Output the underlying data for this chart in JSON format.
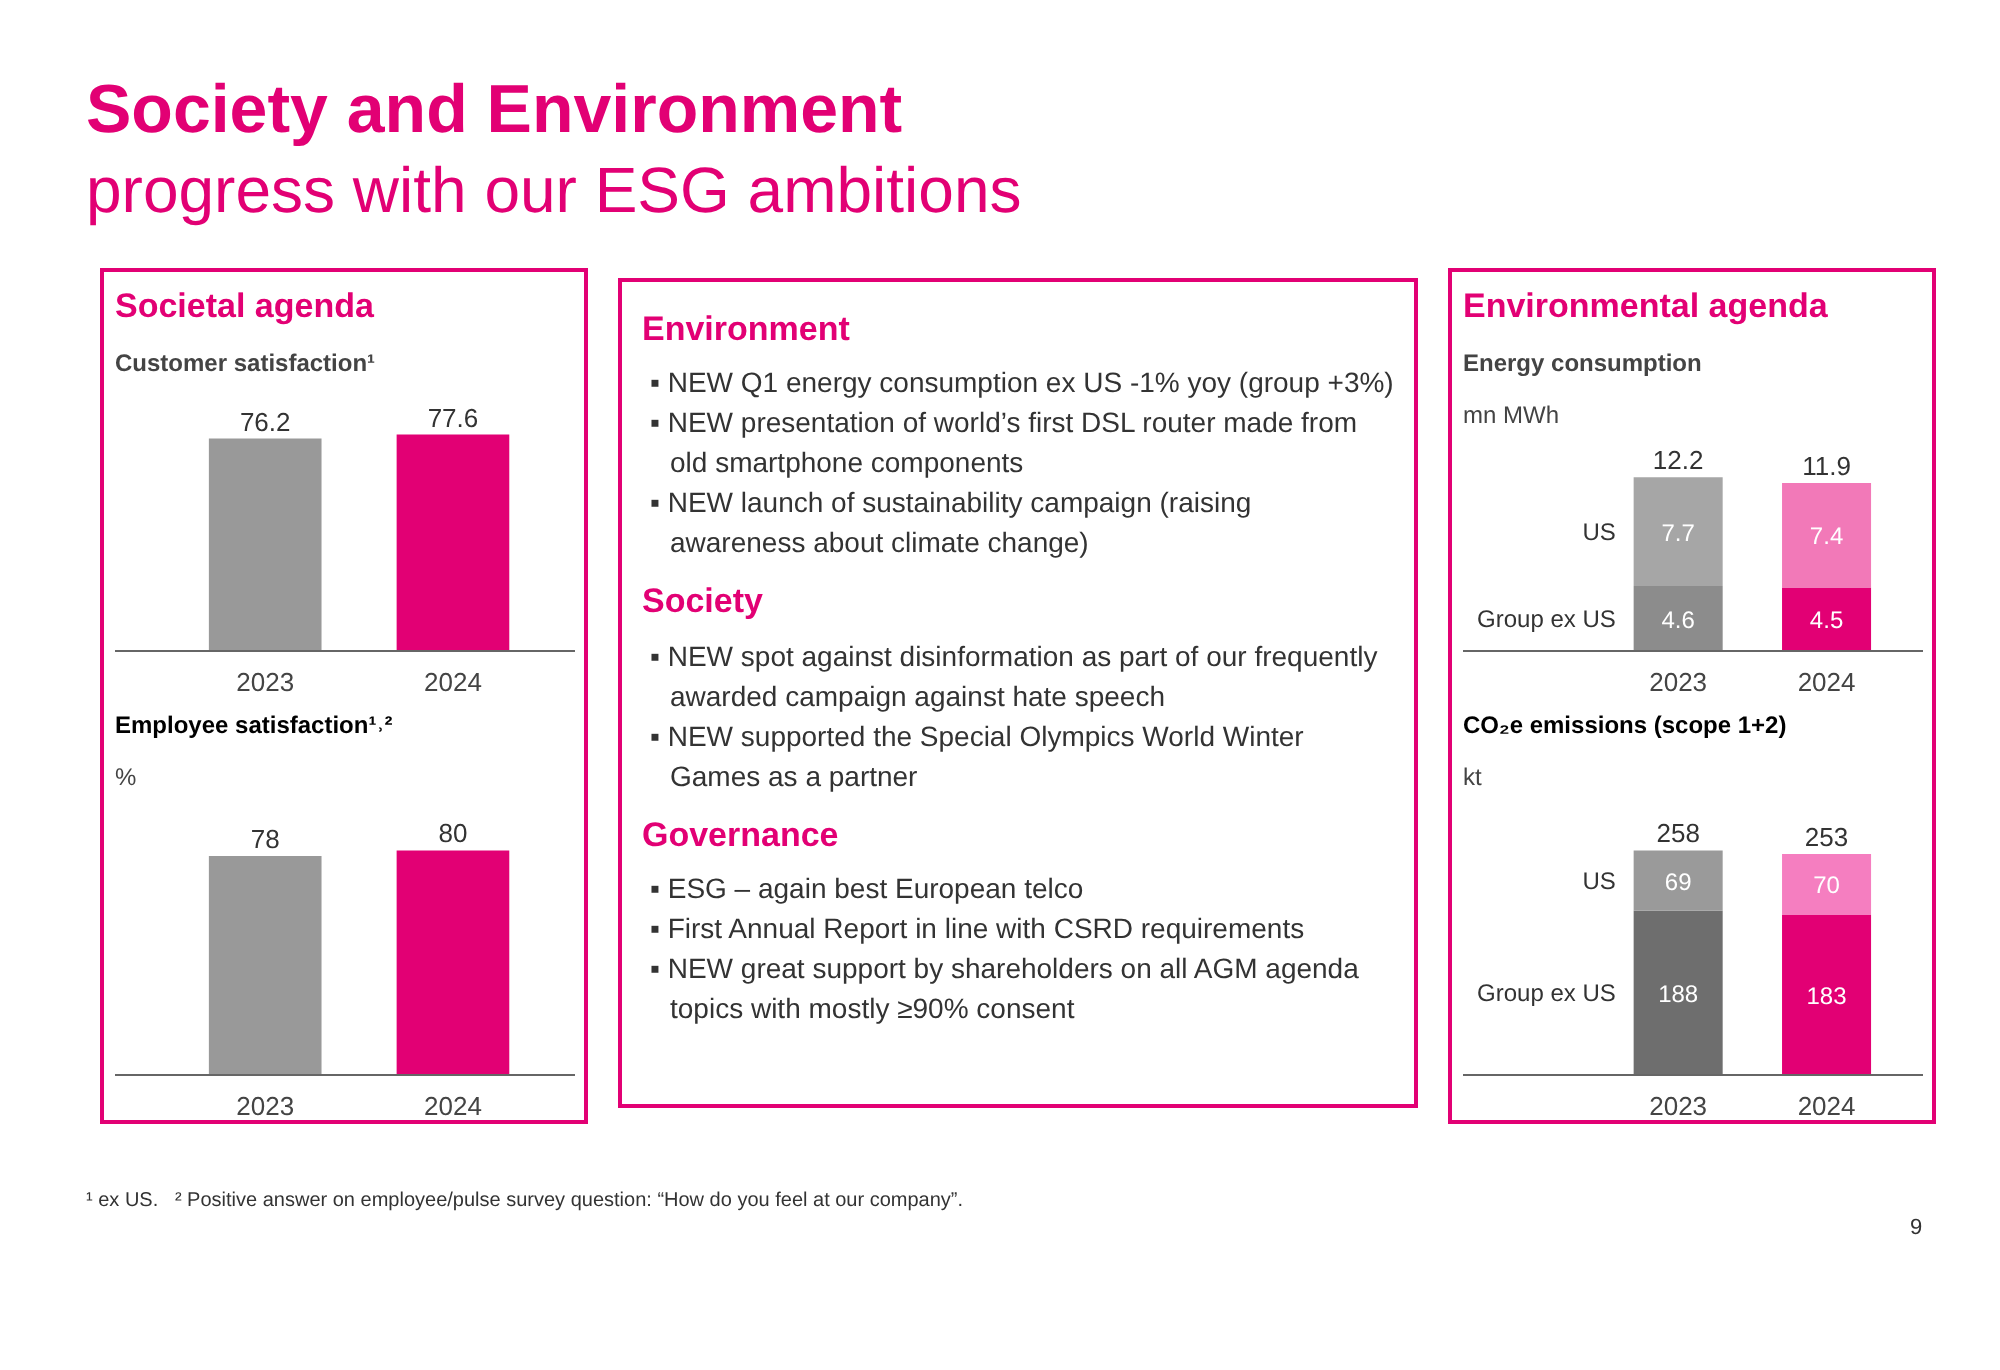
{
  "chart_data": [
    {
      "type": "other",
      "title": "Society and Environment",
      "subtitle": "progress with our ESG ambitions",
      "annotations": [
        "¹ ex US.",
        "² Positive answer on employee/pulse survey question: “How do you feel at our company”.",
        "9"
      ]
    },
    {
      "type": "bar",
      "title": "Societal agenda",
      "subtitle": "Customer satisfaction¹",
      "categories": [
        "2023",
        "2024"
      ],
      "values": [
        76.2,
        77.6
      ],
      "colors": [
        "#999999",
        "#e20074"
      ],
      "data_labels": true
    },
    {
      "type": "bar",
      "title": "Employee satisfaction¹˒²",
      "ylabel": "%",
      "categories": [
        "2023",
        "2024"
      ],
      "values": [
        78,
        80
      ],
      "colors": [
        "#999999",
        "#e20074"
      ],
      "data_labels": true
    },
    {
      "type": "other",
      "title": "Environment",
      "annotations": [
        "▪ NEW Q1 energy consumption ex US -1% yoy (group +3%)",
        "▪ NEW presentation of world’s first DSL router made from old smartphone components",
        "▪ NEW launch of sustainability campaign (raising awareness about climate change)"
      ]
    },
    {
      "type": "other",
      "title": "Society",
      "annotations": [
        "▪ NEW spot against disinformation as part of our frequently awarded campaign against hate speech",
        "▪ NEW supported the Special Olympics World Winter Games as a partner"
      ]
    },
    {
      "type": "other",
      "title": "Governance",
      "annotations": [
        "▪ ESG – again best European telco",
        "▪ First Annual Report in line with CSRD requirements",
        "▪ NEW great support by shareholders on all AGM agenda topics with mostly ≥90% consent"
      ]
    },
    {
      "type": "bar",
      "title": "Environmental agenda",
      "subtitle": "Energy consumption",
      "ylabel": "mn MWh",
      "categories": [
        "2023",
        "2024"
      ],
      "stacked": true,
      "data_labels": true,
      "totals": [
        "12.2",
        "11.9"
      ],
      "series": [
        {
          "name": "Group ex US",
          "colors": [
            "#8c8c8c",
            "#e20074"
          ],
          "values": [
            4.6,
            4.5
          ]
        },
        {
          "name": "US",
          "colors": [
            "#a6a6a6",
            "#f279b8"
          ],
          "values": [
            7.7,
            7.4
          ]
        }
      ]
    },
    {
      "type": "bar",
      "title": "CO₂e emissions (scope 1+2)",
      "ylabel": "kt",
      "categories": [
        "2023",
        "2024"
      ],
      "stacked": true,
      "data_labels": true,
      "totals": [
        "258",
        "253"
      ],
      "series": [
        {
          "name": "Group ex US",
          "colors": [
            "#6e6e6e",
            "#e20074"
          ],
          "values": [
            188,
            183
          ]
        },
        {
          "name": "US",
          "colors": [
            "#9a9a9a",
            "#f57ec0"
          ],
          "values": [
            69,
            70
          ]
        }
      ]
    }
  ]
}
